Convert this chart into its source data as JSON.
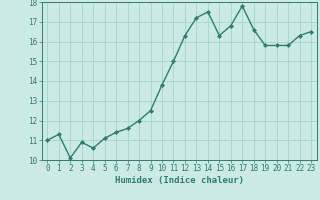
{
  "x": [
    0,
    1,
    2,
    3,
    4,
    5,
    6,
    7,
    8,
    9,
    10,
    11,
    12,
    13,
    14,
    15,
    16,
    17,
    18,
    19,
    20,
    21,
    22,
    23
  ],
  "y": [
    11.0,
    11.3,
    10.1,
    10.9,
    10.6,
    11.1,
    11.4,
    11.6,
    12.0,
    12.5,
    13.8,
    15.0,
    16.3,
    17.2,
    17.5,
    16.3,
    16.8,
    17.8,
    16.6,
    15.8,
    15.8,
    15.8,
    16.3,
    16.5
  ],
  "line_color": "#2e7d6e",
  "marker": "D",
  "marker_size": 2,
  "bg_color": "#cceae5",
  "grid_color": "#a8d8d2",
  "xlabel": "Humidex (Indice chaleur)",
  "ylim": [
    10,
    18
  ],
  "xlim": [
    -0.5,
    23.5
  ],
  "yticks": [
    10,
    11,
    12,
    13,
    14,
    15,
    16,
    17,
    18
  ],
  "xticks": [
    0,
    1,
    2,
    3,
    4,
    5,
    6,
    7,
    8,
    9,
    10,
    11,
    12,
    13,
    14,
    15,
    16,
    17,
    18,
    19,
    20,
    21,
    22,
    23
  ],
  "tick_fontsize": 5.5,
  "xlabel_fontsize": 6.5,
  "line_width": 1.0
}
